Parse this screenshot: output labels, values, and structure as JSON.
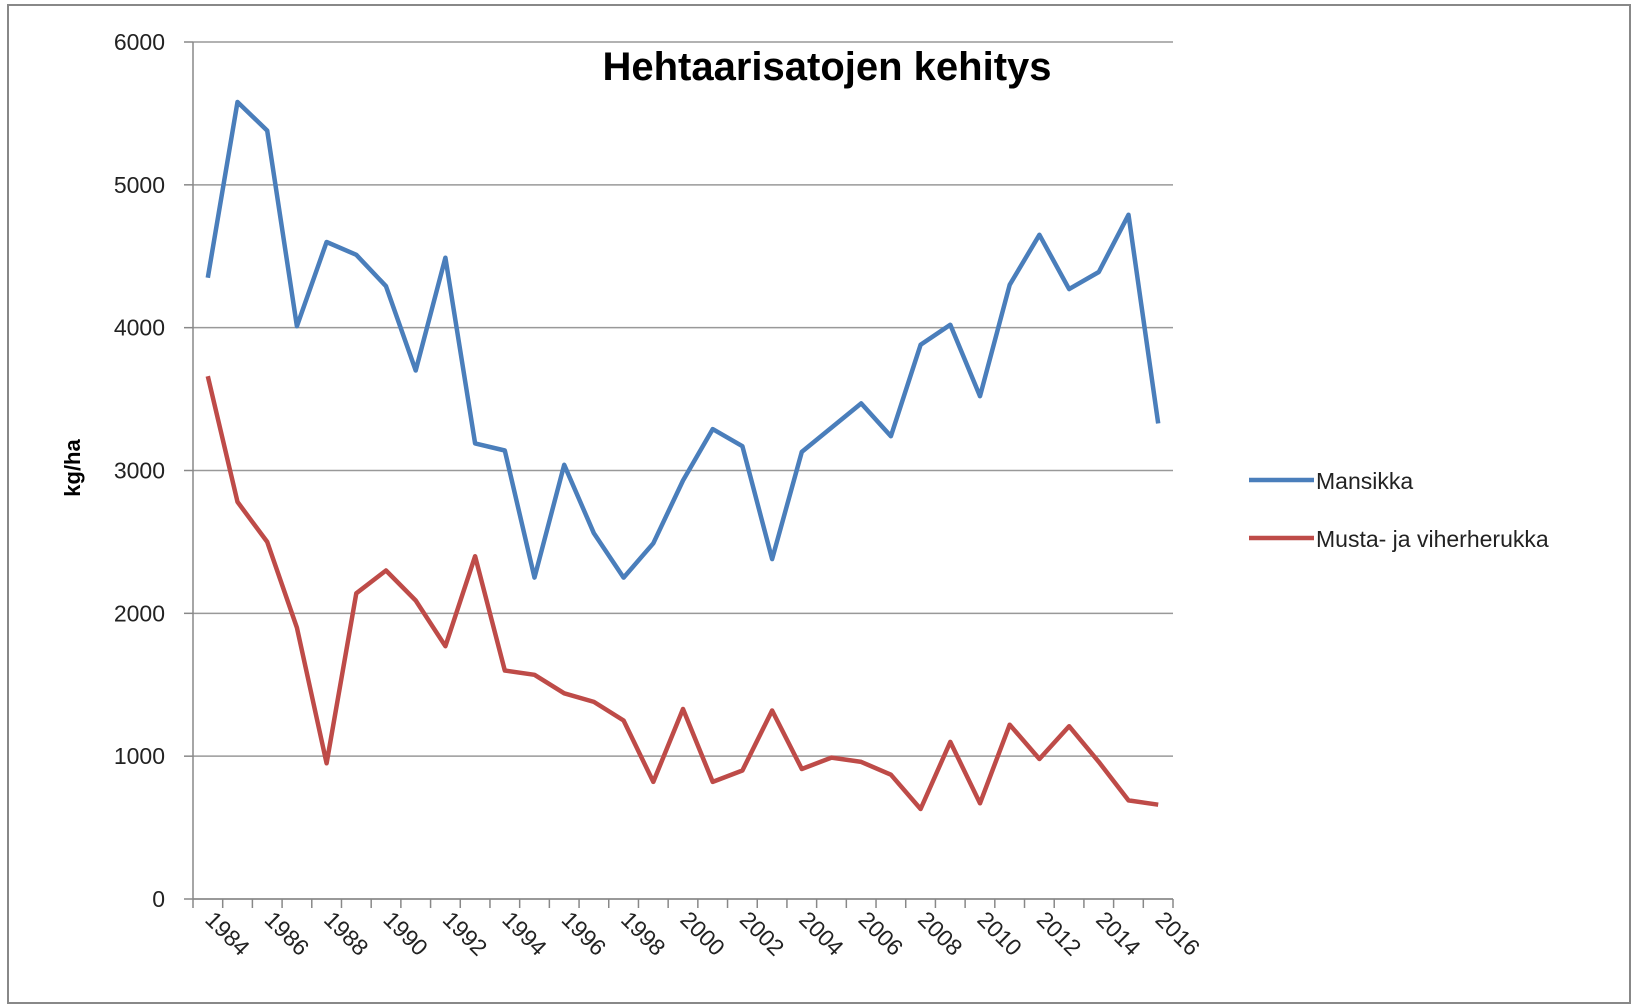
{
  "chart_data": {
    "type": "line",
    "title": "Hehtaarisatojen kehitys",
    "y_label": "kg/ha",
    "categories": [
      "1984",
      null,
      "1986",
      null,
      "1988",
      null,
      "1990",
      null,
      "1992",
      null,
      "1994",
      null,
      "1996",
      null,
      "1998",
      null,
      "2000",
      null,
      "2002",
      null,
      "2004",
      null,
      "2006",
      null,
      "2008",
      null,
      "2010",
      null,
      "2012",
      null,
      "2014",
      null,
      "2016"
    ],
    "series": [
      {
        "name": "Mansikka",
        "color": "#4a7ebb",
        "values": [
          4350,
          5580,
          5380,
          4010,
          4600,
          4510,
          4290,
          3700,
          4490,
          3190,
          3140,
          2250,
          3040,
          2560,
          2250,
          2490,
          2930,
          3290,
          3170,
          2380,
          3130,
          3300,
          3470,
          3240,
          3880,
          4020,
          3520,
          4300,
          4650,
          4270,
          4390,
          4790,
          3330
        ]
      },
      {
        "name": "Musta- ja viherherukka",
        "color": "#be4b48",
        "values": [
          3660,
          2780,
          2500,
          1900,
          950,
          2140,
          2300,
          2090,
          1770,
          2400,
          1600,
          1570,
          1440,
          1380,
          1250,
          820,
          1330,
          820,
          900,
          1320,
          910,
          990,
          960,
          870,
          630,
          1100,
          670,
          1220,
          980,
          1210,
          960,
          690,
          660
        ]
      }
    ],
    "ylim": [
      0,
      6000
    ],
    "yticks": [
      0,
      1000,
      2000,
      3000,
      4000,
      5000,
      6000
    ],
    "grid": true,
    "legend": "right"
  }
}
